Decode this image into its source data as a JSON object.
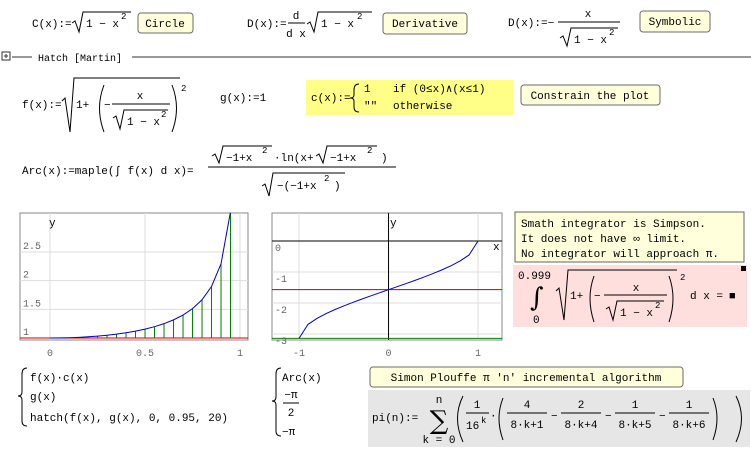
{
  "row1": {
    "circle": {
      "lhs": "C(x):=",
      "radicand": "1 − x",
      "exp": "2",
      "button": "Circle"
    },
    "derivative": {
      "lhs": "D(x):=",
      "num": "d",
      "den": "d x",
      "radicand": "1 − x",
      "exp": "2",
      "button": "Derivative"
    },
    "symbolic": {
      "lhs": "D(x):=−",
      "num": "x",
      "radicand": "1 − x",
      "exp": "2",
      "button": "Symbolic"
    }
  },
  "region": {
    "label": "Hatch [Martin]"
  },
  "f_def": {
    "lhs": "f(x):=",
    "one_plus": "1+",
    "minus": "−",
    "num": "x",
    "radicand": "1 − x",
    "exp_inner": "2",
    "exp_outer": "2"
  },
  "g_def": "g(x):=1",
  "c_def": {
    "lhs": "c(x):=",
    "case1_value": "1",
    "case1_cond": "if  (0≤x)∧(x≤1)",
    "case2_value": "\"\"",
    "case2_cond": "otherwise",
    "button": "Constrain the plot"
  },
  "arc_def": {
    "lhs": "Arc(x):=maple(∫ f(x) d x)=",
    "num_radicand": "−1+x",
    "num_exp": "2",
    "num_mid": "·ln(x+",
    "num_radicand2": "−1+x",
    "num_exp2": "2",
    "num_close": ")",
    "den_radicand": "−(−1+x",
    "den_exp": "2",
    "den_close": ")"
  },
  "plot1": {
    "y_label": "y",
    "xlim": [
      -0.158,
      1.042
    ],
    "ylim": [
      0.965,
      3.18
    ],
    "xticks": [
      0,
      0.5,
      1
    ],
    "yticks": [
      1,
      1.5,
      2,
      2.5
    ],
    "grid": true,
    "origin_axes": false,
    "curve": {
      "color": "#0000cc",
      "x": [
        0,
        0.05,
        0.1,
        0.15,
        0.2,
        0.25,
        0.3,
        0.35,
        0.4,
        0.45,
        0.5,
        0.55,
        0.6,
        0.65,
        0.7,
        0.75,
        0.8,
        0.85,
        0.9,
        0.95
      ],
      "y": [
        1,
        1.0013,
        1.005,
        1.0114,
        1.0206,
        1.0328,
        1.0483,
        1.0675,
        1.0911,
        1.1198,
        1.1547,
        1.1974,
        1.25,
        1.3159,
        1.4003,
        1.5119,
        1.6667,
        1.8983,
        2.2942,
        3.2026
      ]
    },
    "hlines": [
      {
        "color": "#cc0000",
        "y": 1
      }
    ],
    "hatch_color": "#008000",
    "traces": [
      "f(x)·c(x)",
      "g(x)",
      "hatch(f(x), g(x), 0, 0.95, 20)"
    ]
  },
  "plot2": {
    "x_label": "x",
    "y_label": "y",
    "xlim": [
      -1.302,
      1.268
    ],
    "ylim": [
      -3.194,
      0.903
    ],
    "xticks": [
      -1,
      0,
      1
    ],
    "yticks": [
      0,
      -1,
      -2,
      -3
    ],
    "grid": true,
    "origin_axes": true,
    "curve": {
      "color": "#0000cc",
      "x": [
        -1,
        -0.9,
        -0.8,
        -0.7,
        -0.6,
        -0.5,
        -0.4,
        -0.3,
        -0.2,
        -0.1,
        0,
        0.1,
        0.2,
        0.3,
        0.4,
        0.5,
        0.6,
        0.7,
        0.8,
        0.9,
        1
      ],
      "y": [
        -3.1416,
        -2.6906,
        -2.4981,
        -2.3462,
        -2.2143,
        -2.0944,
        -1.9823,
        -1.8755,
        -1.7722,
        -1.671,
        -1.5708,
        -1.4706,
        -1.3694,
        -1.2661,
        -1.1593,
        -1.0472,
        -0.9273,
        -0.7954,
        -0.6435,
        -0.451,
        0
      ]
    },
    "hlines": [
      {
        "color": "#cc0000",
        "y": -1.5708
      },
      {
        "color": "#008000",
        "y": -3.1416
      }
    ],
    "traces": {
      "arc": "Arc(x)",
      "half_pi_num": "−π",
      "half_pi_den": "2",
      "pi": "−π"
    }
  },
  "note": {
    "lines": [
      "Smath integrator is Simpson.",
      "It does not have ∞ limit.",
      "No integrator will approach π."
    ]
  },
  "integral": {
    "upper": "0.999",
    "integral": "∫",
    "lower": "0",
    "one_plus": "1+",
    "minus": "−",
    "num": "x",
    "radicand": "1 − x",
    "exp_inner": "2",
    "exp_outer": "2",
    "dx": "d x =",
    "result": "■"
  },
  "plouffe": {
    "button": "Simon Plouffe π 'n' incremental algorithm",
    "lhs": "pi(n):=",
    "sum_top": "n",
    "sigma": "∑",
    "sum_bottom": "k = 0",
    "one": "1",
    "sixteen": "16",
    "k_exp": "k",
    "dot": "·",
    "n1": "4",
    "d1": "8·k+1",
    "minus1": "−",
    "n2": "2",
    "d2": "8·k+4",
    "minus2": "−",
    "n3": "1",
    "d3": "8·k+5",
    "minus3": "−",
    "n4": "1",
    "d4": "8·k+6"
  }
}
